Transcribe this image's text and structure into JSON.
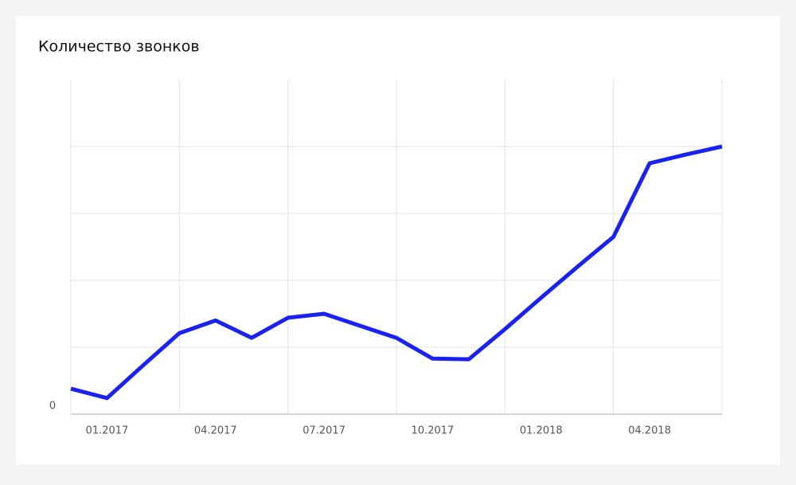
{
  "chart_data": {
    "type": "line",
    "title": "Количество звонков",
    "categories": [
      null,
      "01.2017",
      null,
      null,
      "04.2017",
      null,
      null,
      "07.2017",
      null,
      null,
      "10.2017",
      null,
      null,
      "01.2018",
      null,
      null,
      "04.2018",
      null,
      null
    ],
    "series": [
      {
        "color": "#1a22f0",
        "values": [
          0.38,
          0.24,
          0.73,
          1.21,
          1.4,
          1.14,
          1.44,
          1.5,
          1.32,
          1.14,
          0.83,
          0.82,
          1.27,
          1.74,
          2.2,
          2.65,
          3.75,
          3.88,
          4.0
        ]
      }
    ],
    "ylim": [
      0,
      5
    ],
    "yticks": [
      0
    ],
    "ygrid": [
      1,
      2,
      3,
      4
    ],
    "grid": true
  }
}
